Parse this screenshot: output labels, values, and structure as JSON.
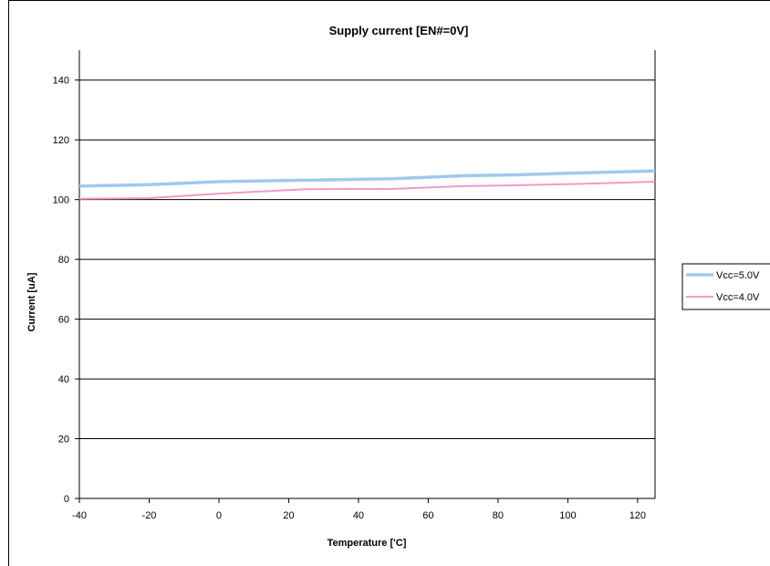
{
  "chart_data": {
    "type": "line",
    "title": "Supply current [EN#=0V]",
    "xlabel": "Temperature ['C]",
    "ylabel": "Current [uA]",
    "xlim": [
      -40,
      125
    ],
    "ylim": [
      0,
      150
    ],
    "xticks": [
      "-40",
      "-20",
      "0",
      "20",
      "40",
      "60",
      "80",
      "100",
      "120"
    ],
    "yticks": [
      "0",
      "20",
      "40",
      "60",
      "80",
      "100",
      "120",
      "140"
    ],
    "grid": "horizontal",
    "legend_position": "right",
    "series": [
      {
        "name": "Vcc=5.0V",
        "color": "#9fc9ee",
        "points": [
          [
            -40,
            104.5
          ],
          [
            -20,
            105.0
          ],
          [
            0,
            106.0
          ],
          [
            25,
            106.5
          ],
          [
            50,
            107.0
          ],
          [
            70,
            108.0
          ],
          [
            85,
            108.3
          ],
          [
            105,
            109.0
          ],
          [
            125,
            109.6
          ]
        ]
      },
      {
        "name": "Vcc=4.0V",
        "color": "#f19ac9",
        "points": [
          [
            -40,
            100.3
          ],
          [
            -20,
            100.5
          ],
          [
            0,
            102.0
          ],
          [
            25,
            103.5
          ],
          [
            50,
            103.6
          ],
          [
            70,
            104.5
          ],
          [
            85,
            104.8
          ],
          [
            105,
            105.3
          ],
          [
            125,
            106.0
          ]
        ]
      }
    ]
  }
}
